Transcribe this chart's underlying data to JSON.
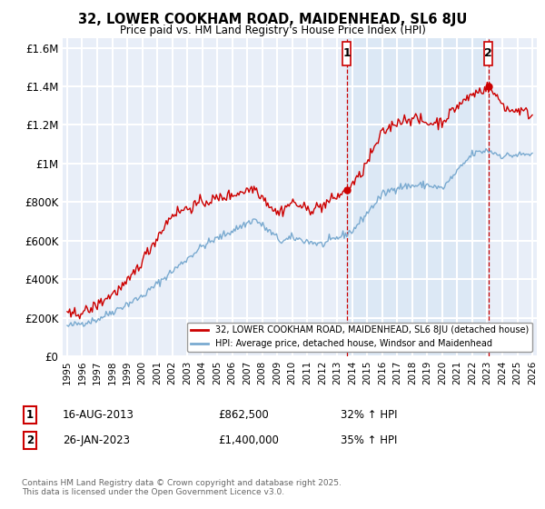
{
  "title": "32, LOWER COOKHAM ROAD, MAIDENHEAD, SL6 8JU",
  "subtitle": "Price paid vs. HM Land Registry's House Price Index (HPI)",
  "ylim": [
    0,
    1650000
  ],
  "yticks": [
    0,
    200000,
    400000,
    600000,
    800000,
    1000000,
    1200000,
    1400000,
    1600000
  ],
  "ytick_labels": [
    "£0",
    "£200K",
    "£400K",
    "£600K",
    "£800K",
    "£1M",
    "£1.2M",
    "£1.4M",
    "£1.6M"
  ],
  "bg_color": "#e8eef8",
  "grid_color": "#ffffff",
  "shade_color": "#dce8f5",
  "line1_color": "#cc0000",
  "line2_color": "#7aaad0",
  "sale1_x": 2013.622,
  "sale1_y": 862500,
  "sale1_label": "1",
  "sale2_x": 2023.074,
  "sale2_y": 1400000,
  "sale2_label": "2",
  "legend_line1": "32, LOWER COOKHAM ROAD, MAIDENHEAD, SL6 8JU (detached house)",
  "legend_line2": "HPI: Average price, detached house, Windsor and Maidenhead",
  "annotation1_date": "16-AUG-2013",
  "annotation1_price": "£862,500",
  "annotation1_hpi": "32% ↑ HPI",
  "annotation2_date": "26-JAN-2023",
  "annotation2_price": "£1,400,000",
  "annotation2_hpi": "35% ↑ HPI",
  "footer": "Contains HM Land Registry data © Crown copyright and database right 2025.\nThis data is licensed under the Open Government Licence v3.0.",
  "xmin": 1994.7,
  "xmax": 2026.3
}
